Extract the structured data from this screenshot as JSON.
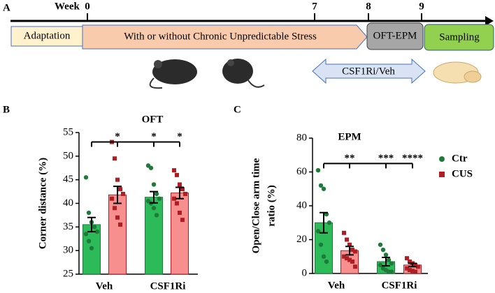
{
  "timeline": {
    "label": "A",
    "week_word": "Week",
    "ticks": [
      "0",
      "7",
      "8",
      "9"
    ],
    "phases": [
      "Adaptation",
      "With or without Chronic Unpredictable Stress",
      "OFT-EPM",
      "Sampling"
    ],
    "treatment": "CSF1Ri/Veh"
  },
  "chart_data": [
    {
      "type": "bar",
      "panel": "B",
      "title": "OFT",
      "ylabel": [
        "Corner distance (%)"
      ],
      "categories": [
        "Veh",
        "CSF1Ri"
      ],
      "series": [
        {
          "color": "#2dbb5a",
          "point_color": "#1f7a3a",
          "marker": "circle",
          "values": [
            35.5,
            41.3
          ],
          "errors": [
            1.5,
            1.2
          ],
          "points": [
            [
              45.5,
              38,
              36,
              35,
              34,
              33.5,
              32,
              30.5
            ],
            [
              48,
              47.5,
              44,
              42,
              41,
              40.5,
              40,
              39,
              37.5
            ]
          ]
        },
        {
          "color": "#f78f8f",
          "point_color": "#b01e24",
          "marker": "square",
          "values": [
            41.8,
            42.2
          ],
          "errors": [
            1.8,
            1.2
          ],
          "points": [
            [
              53,
              49.5,
              45,
              43,
              42,
              41,
              39,
              37,
              35.5
            ],
            [
              47,
              46,
              44,
              43,
              42,
              41,
              40,
              38,
              36.5
            ]
          ]
        }
      ],
      "ylim": [
        25,
        55
      ],
      "yticks": [
        25,
        30,
        35,
        40,
        45,
        50,
        55
      ],
      "significance": {
        "level": 53,
        "labels": [
          "*",
          "*",
          "*"
        ]
      },
      "legend": false
    },
    {
      "type": "bar",
      "panel": "C",
      "title": "EPM",
      "ylabel": [
        "Open/Close arm time",
        "ratio (%)"
      ],
      "categories": [
        "Veh",
        "CSF1Ri"
      ],
      "series": [
        {
          "name": "Ctr",
          "color": "#2dbb5a",
          "point_color": "#1f7a3a",
          "marker": "circle",
          "values": [
            30,
            7
          ],
          "errors": [
            6,
            2.5
          ],
          "points": [
            [
              61,
              52,
              50,
              35,
              30,
              25,
              17,
              10,
              7
            ],
            [
              17,
              14,
              11,
              8,
              6,
              5,
              3,
              2,
              1,
              1
            ]
          ]
        },
        {
          "name": "CUS",
          "color": "#f78f8f",
          "point_color": "#b01e24",
          "marker": "square",
          "values": [
            13.5,
            5
          ],
          "errors": [
            2.5,
            1
          ],
          "points": [
            [
              24,
              20,
              17,
              14,
              13,
              10,
              9,
              8,
              7,
              4
            ],
            [
              9,
              7,
              6,
              5,
              4,
              3,
              2,
              1.5,
              1
            ]
          ]
        }
      ],
      "ylim": [
        0,
        80
      ],
      "yticks": [
        0,
        20,
        40,
        60,
        80
      ],
      "significance": {
        "level": 65,
        "labels": [
          "**",
          "***",
          "****"
        ]
      },
      "legend": "right"
    }
  ]
}
